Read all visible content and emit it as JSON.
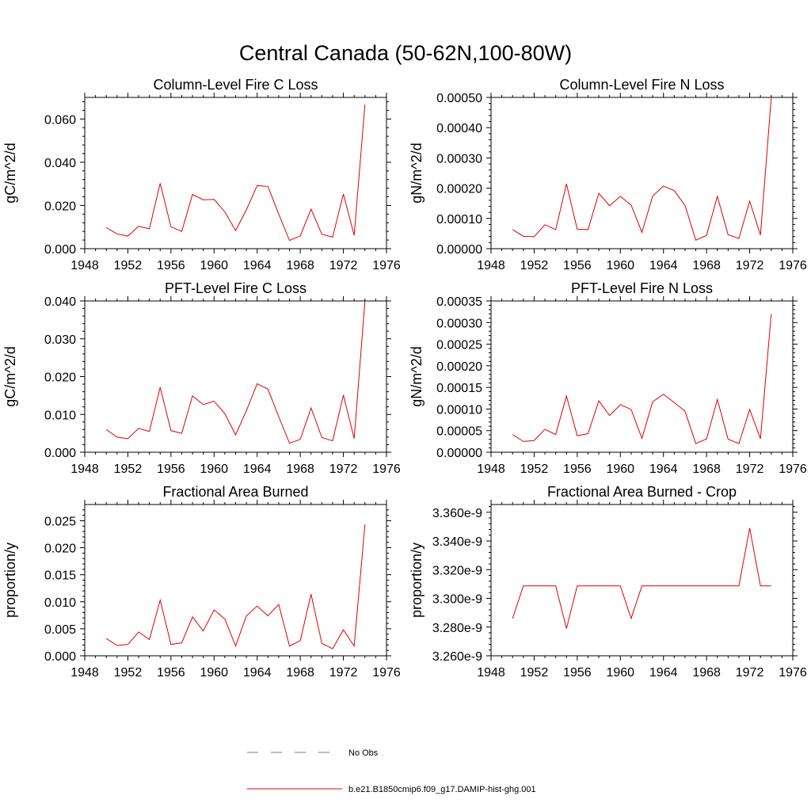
{
  "figure": {
    "title": "Central Canada (50-62N,100-80W)"
  },
  "legend": {
    "entries": [
      {
        "label": "No Obs",
        "style": "dashed",
        "color": "#6d74b8"
      },
      {
        "label": "b.e21.B1850cmip6.f09_g17.DAMIP-hist-ghg.001",
        "style": "solid",
        "color": "#e00000"
      }
    ]
  },
  "chart_data": [
    {
      "type": "line",
      "title": "Column-Level Fire C Loss",
      "ylabel": "gC/m^2/d",
      "xlim": [
        1948,
        1976
      ],
      "ylim": [
        0,
        0.07
      ],
      "xticks": [
        "1948",
        "1952",
        "1956",
        "1960",
        "1964",
        "1968",
        "1972",
        "1976"
      ],
      "yticks": [
        0,
        0.02,
        0.04,
        0.06
      ],
      "yticklabels": [
        "0.000",
        "0.020",
        "0.040",
        "0.060"
      ],
      "series": [
        {
          "name": "b.e21.B1850cmip6.f09_g17.DAMIP-hist-ghg.001",
          "color": "#e00000",
          "x": [
            1950,
            1951,
            1952,
            1953,
            1954,
            1955,
            1956,
            1957,
            1958,
            1959,
            1960,
            1961,
            1962,
            1963,
            1964,
            1965,
            1966,
            1967,
            1968,
            1969,
            1970,
            1971,
            1972,
            1973,
            1974
          ],
          "y": [
            0.0098,
            0.0068,
            0.0058,
            0.0104,
            0.0092,
            0.0303,
            0.0101,
            0.008,
            0.0251,
            0.0226,
            0.0228,
            0.017,
            0.0084,
            0.018,
            0.0292,
            0.0288,
            0.016,
            0.0038,
            0.0059,
            0.0183,
            0.0067,
            0.0053,
            0.0253,
            0.0062,
            0.0667
          ]
        }
      ]
    },
    {
      "type": "line",
      "title": "Column-Level Fire N Loss",
      "ylabel": "gN/m^2/d",
      "xlim": [
        1948,
        1976
      ],
      "ylim": [
        0,
        0.0005
      ],
      "xticks": [
        "1948",
        "1952",
        "1956",
        "1960",
        "1964",
        "1968",
        "1972",
        "1976"
      ],
      "yticks": [
        0,
        0.0001,
        0.0002,
        0.0003,
        0.0004,
        0.0005
      ],
      "yticklabels": [
        "0.00000",
        "0.00010",
        "0.00020",
        "0.00030",
        "0.00040",
        "0.00050"
      ],
      "series": [
        {
          "name": "b.e21.B1850cmip6.f09_g17.DAMIP-hist-ghg.001",
          "color": "#e00000",
          "x": [
            1950,
            1951,
            1952,
            1953,
            1954,
            1955,
            1956,
            1957,
            1958,
            1959,
            1960,
            1961,
            1962,
            1963,
            1964,
            1965,
            1966,
            1967,
            1968,
            1969,
            1970,
            1971,
            1972,
            1973,
            1974
          ],
          "y": [
            6.3e-05,
            4.1e-05,
            4e-05,
            7.9e-05,
            6.3e-05,
            0.000214,
            6.4e-05,
            6.3e-05,
            0.000183,
            0.000142,
            0.000173,
            0.000144,
            5.4e-05,
            0.000174,
            0.000207,
            0.000192,
            0.000143,
            2.8e-05,
            4.4e-05,
            0.000173,
            4.6e-05,
            3.4e-05,
            0.000157,
            4.5e-05,
            0.000498
          ]
        }
      ]
    },
    {
      "type": "line",
      "title": "PFT-Level Fire C Loss",
      "ylabel": "gC/m^2/d",
      "xlim": [
        1948,
        1976
      ],
      "ylim": [
        0,
        0.04
      ],
      "xticks": [
        "1948",
        "1952",
        "1956",
        "1960",
        "1964",
        "1968",
        "1972",
        "1976"
      ],
      "yticks": [
        0,
        0.01,
        0.02,
        0.03,
        0.04
      ],
      "yticklabels": [
        "0.000",
        "0.010",
        "0.020",
        "0.030",
        "0.040"
      ],
      "series": [
        {
          "name": "b.e21.B1850cmip6.f09_g17.DAMIP-hist-ghg.001",
          "color": "#e00000",
          "x": [
            1950,
            1951,
            1952,
            1953,
            1954,
            1955,
            1956,
            1957,
            1958,
            1959,
            1960,
            1961,
            1962,
            1963,
            1964,
            1965,
            1966,
            1967,
            1968,
            1969,
            1970,
            1971,
            1972,
            1973,
            1974
          ],
          "y": [
            0.006,
            0.004,
            0.0036,
            0.0063,
            0.0055,
            0.0172,
            0.0057,
            0.005,
            0.0149,
            0.0126,
            0.0135,
            0.0102,
            0.0046,
            0.011,
            0.0181,
            0.0167,
            0.0094,
            0.0024,
            0.0034,
            0.0117,
            0.0039,
            0.003,
            0.0151,
            0.0036,
            0.04
          ]
        }
      ]
    },
    {
      "type": "line",
      "title": "PFT-Level Fire N Loss",
      "ylabel": "gN/m^2/d",
      "xlim": [
        1948,
        1976
      ],
      "ylim": [
        0,
        0.00035
      ],
      "xticks": [
        "1948",
        "1952",
        "1956",
        "1960",
        "1964",
        "1968",
        "1972",
        "1976"
      ],
      "yticks": [
        0,
        5e-05,
        0.0001,
        0.00015,
        0.0002,
        0.00025,
        0.0003,
        0.00035
      ],
      "yticklabels": [
        "0.00000",
        "0.00005",
        "0.00010",
        "0.00015",
        "0.00020",
        "0.00025",
        "0.00030",
        "0.00035"
      ],
      "series": [
        {
          "name": "b.e21.B1850cmip6.f09_g17.DAMIP-hist-ghg.001",
          "color": "#e00000",
          "x": [
            1950,
            1951,
            1952,
            1953,
            1954,
            1955,
            1956,
            1957,
            1958,
            1959,
            1960,
            1961,
            1962,
            1963,
            1964,
            1965,
            1966,
            1967,
            1968,
            1969,
            1970,
            1971,
            1972,
            1973,
            1974
          ],
          "y": [
            4.1e-05,
            2.5e-05,
            2.7e-05,
            5.3e-05,
            4.1e-05,
            0.00013,
            3.8e-05,
            4.3e-05,
            0.000119,
            8.5e-05,
            0.00011,
            9.9e-05,
            3.2e-05,
            0.000117,
            0.000134,
            0.000115,
            9.5e-05,
            2e-05,
            3.1e-05,
            0.000122,
            3e-05,
            2e-05,
            9.9e-05,
            3.1e-05,
            0.00032
          ]
        }
      ]
    },
    {
      "type": "line",
      "title": "Fractional Area Burned",
      "ylabel": "proportion/y",
      "xlim": [
        1948,
        1976
      ],
      "ylim": [
        0,
        0.028
      ],
      "xticks": [
        "1948",
        "1952",
        "1956",
        "1960",
        "1964",
        "1968",
        "1972",
        "1976"
      ],
      "yticks": [
        0,
        0.005,
        0.01,
        0.015,
        0.02,
        0.025
      ],
      "yticklabels": [
        "0.000",
        "0.005",
        "0.010",
        "0.015",
        "0.020",
        "0.025"
      ],
      "series": [
        {
          "name": "b.e21.B1850cmip6.f09_g17.DAMIP-hist-ghg.001",
          "color": "#e00000",
          "x": [
            1950,
            1951,
            1952,
            1953,
            1954,
            1955,
            1956,
            1957,
            1958,
            1959,
            1960,
            1961,
            1962,
            1963,
            1964,
            1965,
            1966,
            1967,
            1968,
            1969,
            1970,
            1971,
            1972,
            1973,
            1974
          ],
          "y": [
            0.0032,
            0.0019,
            0.0021,
            0.0044,
            0.003,
            0.0103,
            0.0021,
            0.0024,
            0.0072,
            0.0046,
            0.0085,
            0.0068,
            0.0018,
            0.0074,
            0.0092,
            0.0074,
            0.0095,
            0.0018,
            0.0028,
            0.0114,
            0.0023,
            0.0013,
            0.0048,
            0.0018,
            0.0243
          ]
        }
      ]
    },
    {
      "type": "line",
      "title": "Fractional Area Burned - Crop",
      "ylabel": "proportion/y",
      "xlim": [
        1948,
        1976
      ],
      "ylim": [
        3.26e-09,
        3.3654e-09
      ],
      "xticks": [
        "1948",
        "1952",
        "1956",
        "1960",
        "1964",
        "1968",
        "1972",
        "1976"
      ],
      "yticks": [
        3.26e-09,
        3.28e-09,
        3.3e-09,
        3.32e-09,
        3.34e-09,
        3.36e-09
      ],
      "yticklabels": [
        "3.260e-9",
        "3.280e-9",
        "3.300e-9",
        "3.320e-9",
        "3.340e-9",
        "3.360e-9"
      ],
      "series": [
        {
          "name": "b.e21.B1850cmip6.f09_g17.DAMIP-hist-ghg.001",
          "color": "#e00000",
          "x": [
            1950,
            1951,
            1952,
            1953,
            1954,
            1955,
            1956,
            1957,
            1958,
            1959,
            1960,
            1961,
            1962,
            1963,
            1964,
            1965,
            1966,
            1967,
            1968,
            1969,
            1970,
            1971,
            1972,
            1973,
            1974
          ],
          "y": [
            3.286e-09,
            3.3087e-09,
            3.3087e-09,
            3.3087e-09,
            3.3087e-09,
            3.279e-09,
            3.3087e-09,
            3.3087e-09,
            3.3087e-09,
            3.3087e-09,
            3.3087e-09,
            3.286e-09,
            3.3087e-09,
            3.3087e-09,
            3.3087e-09,
            3.3087e-09,
            3.3087e-09,
            3.3087e-09,
            3.3087e-09,
            3.3087e-09,
            3.3087e-09,
            3.3087e-09,
            3.349e-09,
            3.3087e-09,
            3.3087e-09
          ]
        }
      ]
    }
  ]
}
